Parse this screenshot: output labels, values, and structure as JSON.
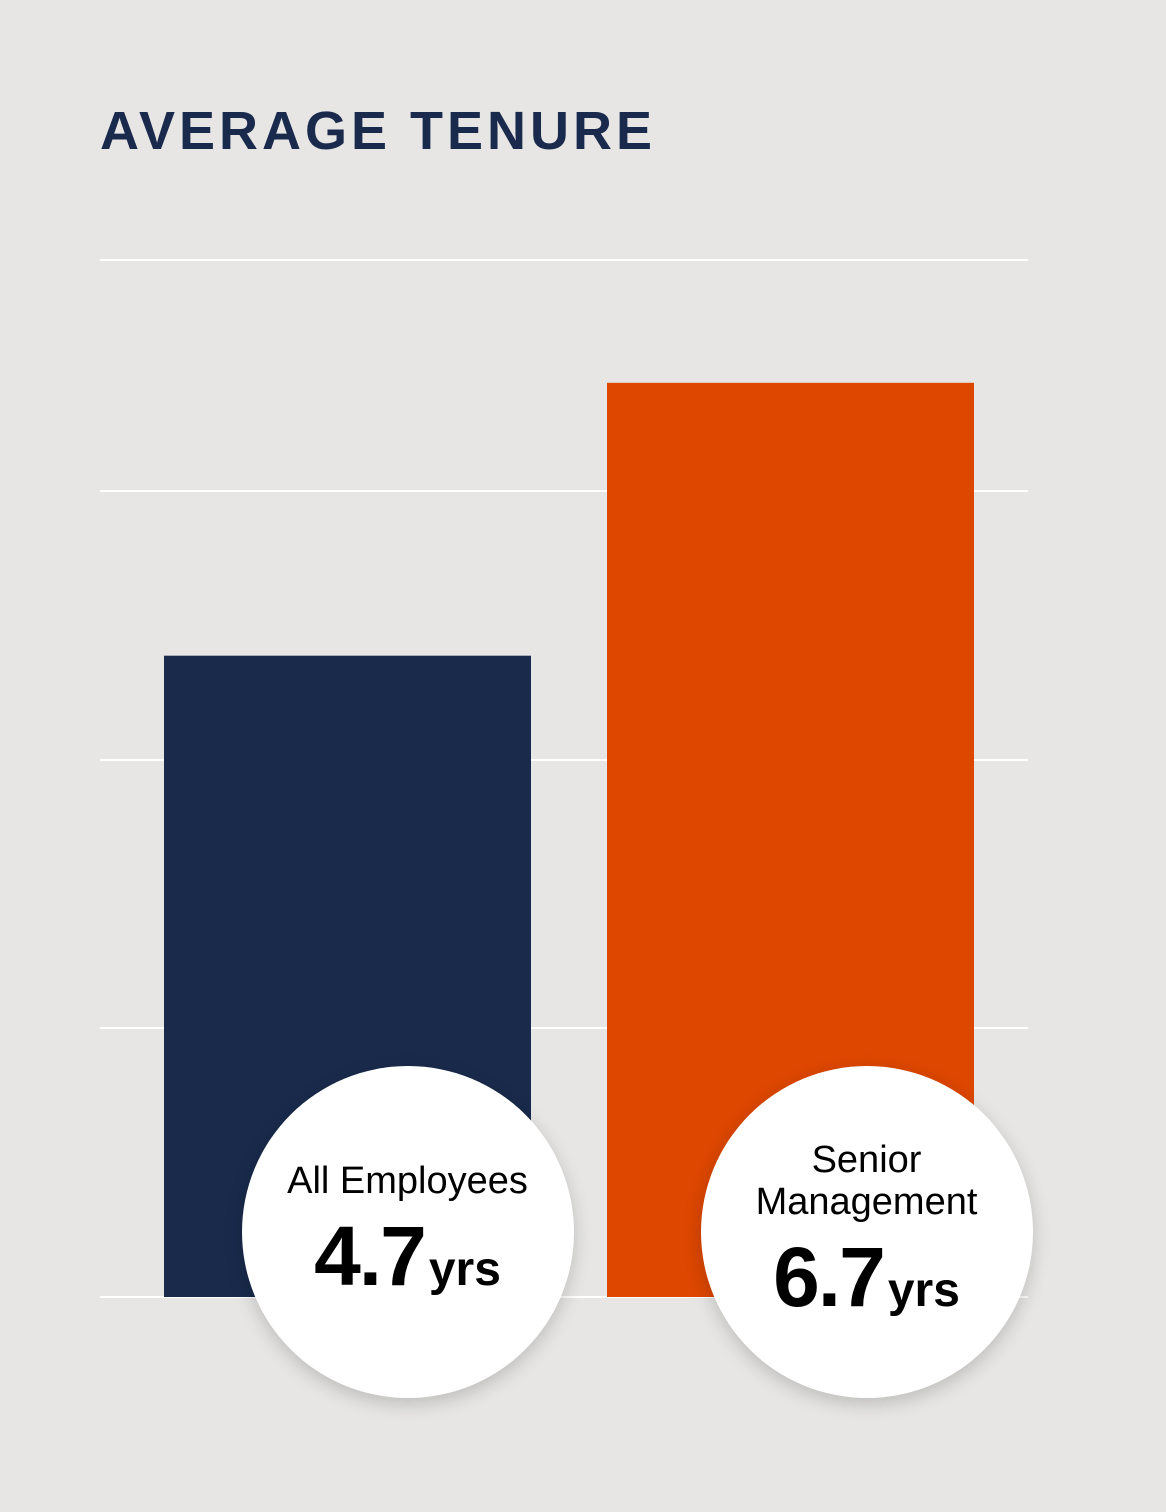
{
  "chart_data": {
    "type": "bar",
    "title": "AVERAGE TENURE",
    "categories": [
      "All Employees",
      "Senior Management"
    ],
    "values": [
      4.7,
      6.7
    ],
    "unit": "yrs",
    "colors": [
      "#192a4b",
      "#dd4700"
    ],
    "ylim": [
      0,
      7.6
    ]
  }
}
